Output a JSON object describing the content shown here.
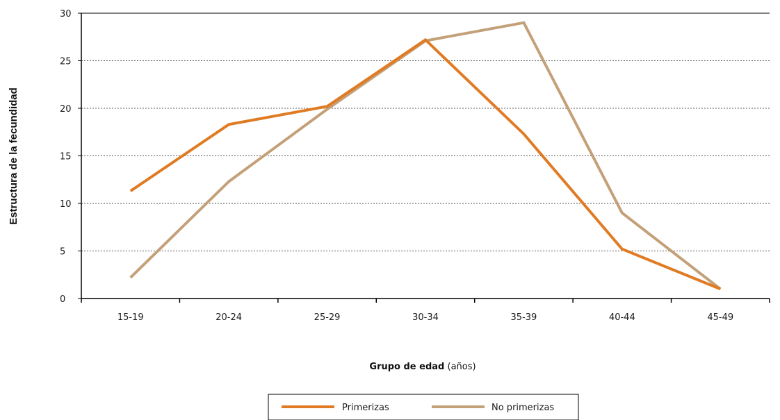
{
  "chart_data": {
    "type": "line",
    "title": "",
    "xlabel": "Grupo de edad (años)",
    "xlabel_parts": {
      "bold": "Grupo de edad",
      "rest": " (años)"
    },
    "ylabel": "Estructura de la fecundidad",
    "categories": [
      "15-19",
      "20-24",
      "25-29",
      "30-34",
      "35-39",
      "40-44",
      "45-49"
    ],
    "ylim": [
      0,
      30
    ],
    "yticks": [
      0,
      5,
      10,
      15,
      20,
      25,
      30
    ],
    "grid": "horizontal dotted",
    "legend_position": "bottom-center",
    "series": [
      {
        "name": "Primerizas",
        "color": "#e07b24",
        "values": [
          11.3,
          18.3,
          20.2,
          27.2,
          17.3,
          5.2,
          1.0
        ]
      },
      {
        "name": "No primerizas",
        "color": "#c4a079",
        "values": [
          2.2,
          12.3,
          19.9,
          27.1,
          29.0,
          9.0,
          1.0
        ]
      }
    ]
  }
}
